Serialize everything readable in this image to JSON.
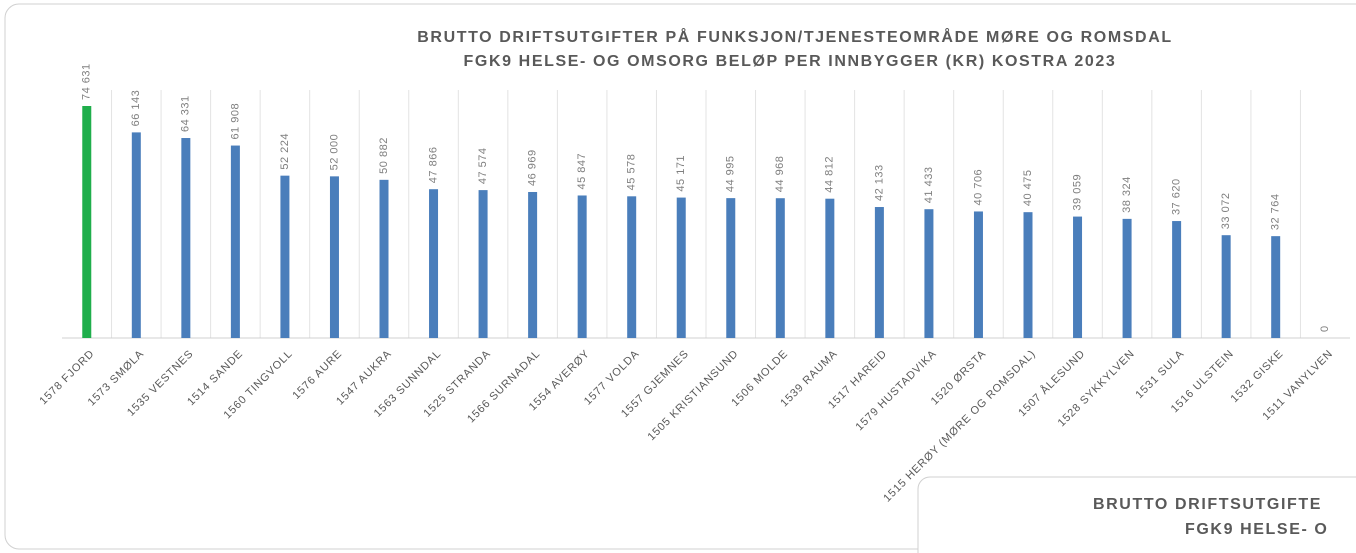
{
  "chart_data": [
    {
      "type": "bar",
      "title": "BRUTTO DRIFTSUTGIFTER PÅ FUNKSJON/TJENESTEOMRÅDE  MØRE OG ROMSDAL",
      "subtitle": "FGK9 HELSE- OG OMSORG BELØP PER INNBYGGER (KR) KOSTRA 2023",
      "categories": [
        "1578 FJORD",
        "1573 SMØLA",
        "1535 VESTNES",
        "1514 SANDE",
        "1560 TINGVOLL",
        "1576 AURE",
        "1547 AUKRA",
        "1563 SUNNDAL",
        "1525 STRANDA",
        "1566 SURNADAL",
        "1554 AVERØY",
        "1577 VOLDA",
        "1557 GJEMNES",
        "1505 KRISTIANSUND",
        "1506 MOLDE",
        "1539 RAUMA",
        "1517 HAREID",
        "1579 HUSTADVIKA",
        "1520 ØRSTA",
        "1515 HERØY (MØRE OG ROMSDAL)",
        "1507 ÅLESUND",
        "1528 SYKKYLVEN",
        "1531 SULA",
        "1516 ULSTEIN",
        "1532 GISKE",
        "1511 VANYLVEN"
      ],
      "values": [
        74631,
        66143,
        64331,
        61908,
        52224,
        52000,
        50882,
        47866,
        47574,
        46969,
        45847,
        45578,
        45171,
        44995,
        44968,
        44812,
        42133,
        41433,
        40706,
        40475,
        39059,
        38324,
        37620,
        33072,
        32764,
        0
      ],
      "value_labels": [
        "74 631",
        "66 143",
        "64 331",
        "61 908",
        "52 224",
        "52 000",
        "50 882",
        "47 866",
        "47 574",
        "46 969",
        "45 847",
        "45 578",
        "45 171",
        "44 995",
        "44 968",
        "44 812",
        "42 133",
        "41 433",
        "40 706",
        "40 475",
        "39 059",
        "38 324",
        "37 620",
        "33 072",
        "32 764",
        "0"
      ],
      "colors": [
        "#1fae4b",
        "#4a7ebb",
        "#4a7ebb",
        "#4a7ebb",
        "#4a7ebb",
        "#4a7ebb",
        "#4a7ebb",
        "#4a7ebb",
        "#4a7ebb",
        "#4a7ebb",
        "#4a7ebb",
        "#4a7ebb",
        "#4a7ebb",
        "#4a7ebb",
        "#4a7ebb",
        "#4a7ebb",
        "#4a7ebb",
        "#4a7ebb",
        "#4a7ebb",
        "#4a7ebb",
        "#4a7ebb",
        "#4a7ebb",
        "#4a7ebb",
        "#4a7ebb",
        "#4a7ebb",
        "#4a7ebb"
      ],
      "grid": true
    },
    {
      "type": "bar",
      "title": "BRUTTO DRIFTSUTGIFTE",
      "subtitle": "FGK9 HELSE- O"
    }
  ]
}
